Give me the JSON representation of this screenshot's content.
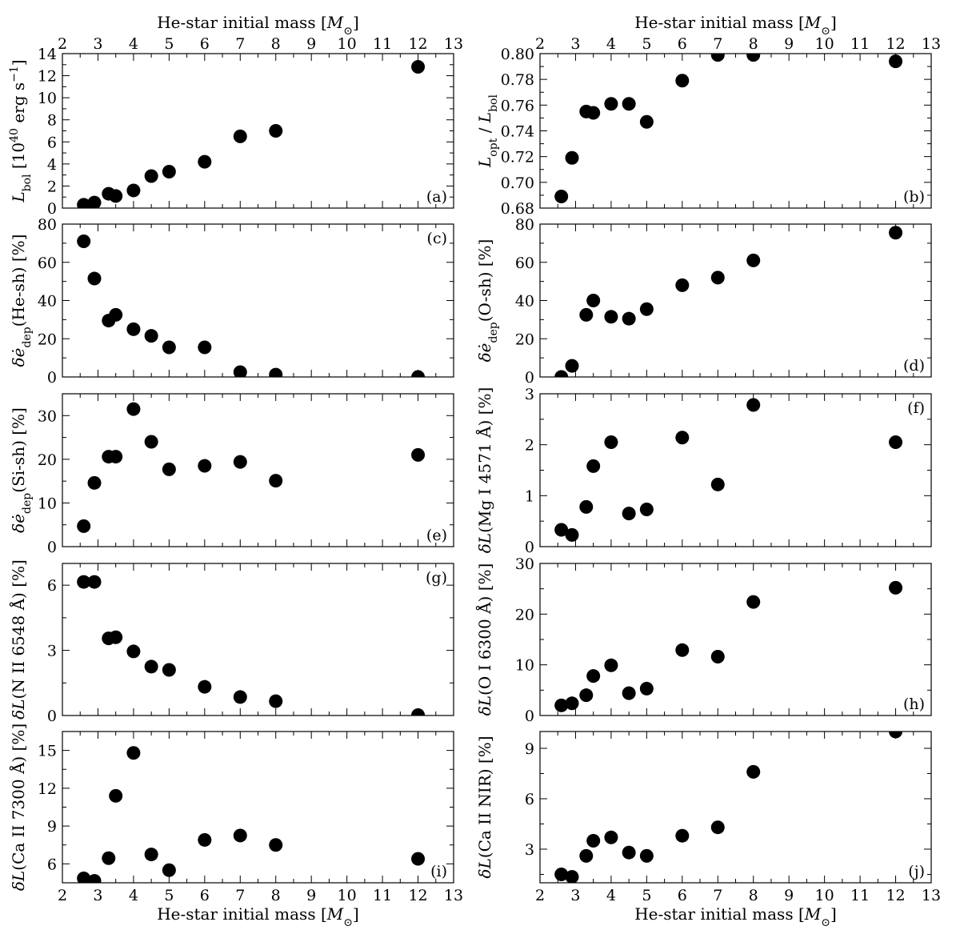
{
  "chart_data": [
    {
      "id": "a",
      "type": "scatter",
      "panel_label": "(a)",
      "ylabel_parts": [
        {
          "t": "L",
          "italic": true
        },
        {
          "t": "bol",
          "sub": true
        },
        {
          "t": " [10"
        },
        {
          "t": "40",
          "sup": true
        },
        {
          "t": " erg s"
        },
        {
          "t": "−1",
          "sup": true
        },
        {
          "t": "]"
        }
      ],
      "xlabel_top_parts": [
        {
          "t": "He-star initial mass ["
        },
        {
          "t": "M",
          "italic": true
        },
        {
          "t": "⊙",
          "sub": true
        },
        {
          "t": "]"
        }
      ],
      "xlim": [
        2,
        13
      ],
      "ylim": [
        0,
        14
      ],
      "xticks": [
        2,
        3,
        4,
        5,
        6,
        7,
        8,
        9,
        10,
        11,
        12,
        13
      ],
      "xticklabels": [
        "2",
        "3",
        "4",
        "5",
        "6",
        "7",
        "8",
        "9",
        "10",
        "11",
        "12",
        "13"
      ],
      "yticks": [
        0,
        2,
        4,
        6,
        8,
        10,
        12,
        14
      ],
      "yticklabels": [
        "0",
        "2",
        "4",
        "6",
        "8",
        "10",
        "12",
        "14"
      ],
      "x": [
        2.6,
        2.9,
        3.3,
        3.5,
        4.0,
        4.5,
        5.0,
        6.0,
        7.0,
        8.0,
        12.0
      ],
      "y": [
        0.3,
        0.5,
        1.3,
        1.1,
        1.6,
        2.9,
        3.3,
        4.2,
        6.5,
        7.0,
        12.8
      ]
    },
    {
      "id": "b",
      "type": "scatter",
      "panel_label": "(b)",
      "ylabel_parts": [
        {
          "t": "L",
          "italic": true
        },
        {
          "t": "opt",
          "sub": true
        },
        {
          "t": " / "
        },
        {
          "t": "L",
          "italic": true
        },
        {
          "t": "bol",
          "sub": true
        }
      ],
      "xlabel_top_parts": [
        {
          "t": "He-star initial mass ["
        },
        {
          "t": "M",
          "italic": true
        },
        {
          "t": "⊙",
          "sub": true
        },
        {
          "t": "]"
        }
      ],
      "xlim": [
        2,
        13
      ],
      "ylim": [
        0.68,
        0.8
      ],
      "xticks": [
        2,
        3,
        4,
        5,
        6,
        7,
        8,
        9,
        10,
        11,
        12,
        13
      ],
      "xticklabels": [
        "2",
        "3",
        "4",
        "5",
        "6",
        "7",
        "8",
        "9",
        "10",
        "11",
        "12",
        "13"
      ],
      "yticks": [
        0.68,
        0.7,
        0.72,
        0.74,
        0.76,
        0.78,
        0.8
      ],
      "yticklabels": [
        "0.68",
        "0.70",
        "0.72",
        "0.74",
        "0.76",
        "0.78",
        "0.80"
      ],
      "x": [
        2.6,
        2.9,
        3.3,
        3.5,
        4.0,
        4.5,
        5.0,
        6.0,
        7.0,
        8.0,
        12.0
      ],
      "y": [
        0.689,
        0.719,
        0.755,
        0.754,
        0.761,
        0.761,
        0.747,
        0.779,
        0.799,
        0.799,
        0.794
      ]
    },
    {
      "id": "c",
      "type": "scatter",
      "panel_label": "(c)",
      "ylabel_parts": [
        {
          "t": "δė",
          "italic": true
        },
        {
          "t": "dep",
          "sub": true
        },
        {
          "t": "(He-sh) [%]"
        }
      ],
      "xlim": [
        2,
        13
      ],
      "ylim": [
        0,
        80
      ],
      "xticks": [
        2,
        3,
        4,
        5,
        6,
        7,
        8,
        9,
        10,
        11,
        12,
        13
      ],
      "yticks": [
        0,
        20,
        40,
        60,
        80
      ],
      "yticklabels": [
        "0",
        "20",
        "40",
        "60",
        "80"
      ],
      "x": [
        2.6,
        2.9,
        3.3,
        3.5,
        4.0,
        4.5,
        5.0,
        6.0,
        7.0,
        8.0,
        12.0
      ],
      "y": [
        71,
        51.5,
        29.5,
        32.5,
        25,
        21.5,
        15.5,
        15.5,
        2.5,
        1.2,
        0
      ]
    },
    {
      "id": "d",
      "type": "scatter",
      "panel_label": "(d)",
      "ylabel_parts": [
        {
          "t": "δė",
          "italic": true
        },
        {
          "t": "dep",
          "sub": true
        },
        {
          "t": "(O-sh) [%]"
        }
      ],
      "xlim": [
        2,
        13
      ],
      "ylim": [
        0,
        80
      ],
      "xticks": [
        2,
        3,
        4,
        5,
        6,
        7,
        8,
        9,
        10,
        11,
        12,
        13
      ],
      "yticks": [
        0,
        20,
        40,
        60,
        80
      ],
      "yticklabels": [
        "0",
        "20",
        "40",
        "60",
        "80"
      ],
      "x": [
        2.6,
        2.9,
        3.3,
        3.5,
        4.0,
        4.5,
        5.0,
        6.0,
        7.0,
        8.0,
        12.0
      ],
      "y": [
        0,
        5.8,
        32.5,
        40,
        31.5,
        30.5,
        35.5,
        48,
        52,
        61,
        75.5
      ]
    },
    {
      "id": "e",
      "type": "scatter",
      "panel_label": "(e)",
      "ylabel_parts": [
        {
          "t": "δė",
          "italic": true
        },
        {
          "t": "dep",
          "sub": true
        },
        {
          "t": "(Si-sh) [%]"
        }
      ],
      "xlim": [
        2,
        13
      ],
      "ylim": [
        0,
        35
      ],
      "xticks": [
        2,
        3,
        4,
        5,
        6,
        7,
        8,
        9,
        10,
        11,
        12,
        13
      ],
      "yticks": [
        0,
        10,
        20,
        30
      ],
      "yticklabels": [
        "0",
        "10",
        "20",
        "30"
      ],
      "x": [
        2.6,
        2.9,
        3.3,
        3.5,
        4.0,
        4.5,
        5.0,
        6.0,
        7.0,
        8.0,
        12.0
      ],
      "y": [
        4.7,
        14.6,
        20.6,
        20.6,
        31.5,
        24,
        17.7,
        18.5,
        19.4,
        15.1,
        21
      ]
    },
    {
      "id": "f",
      "type": "scatter",
      "panel_label": "(f)",
      "ylabel_parts": [
        {
          "t": "δL",
          "italic": true
        },
        {
          "t": "(Mg I 4571 Å) [%]"
        }
      ],
      "xlim": [
        2,
        13
      ],
      "ylim": [
        0,
        3
      ],
      "xticks": [
        2,
        3,
        4,
        5,
        6,
        7,
        8,
        9,
        10,
        11,
        12,
        13
      ],
      "yticks": [
        0,
        1,
        2,
        3
      ],
      "yticklabels": [
        "0",
        "1",
        "2",
        "3"
      ],
      "x": [
        2.6,
        2.9,
        3.3,
        3.5,
        4.0,
        4.5,
        5.0,
        6.0,
        7.0,
        8.0,
        12.0
      ],
      "y": [
        0.33,
        0.23,
        0.78,
        1.58,
        2.05,
        0.65,
        0.73,
        2.14,
        1.22,
        2.78,
        2.05
      ]
    },
    {
      "id": "g",
      "type": "scatter",
      "panel_label": "(g)",
      "ylabel_parts": [
        {
          "t": "δL",
          "italic": true
        },
        {
          "t": "(N II 6548 Å) [%]"
        }
      ],
      "xlim": [
        2,
        13
      ],
      "ylim": [
        0,
        7
      ],
      "xticks": [
        2,
        3,
        4,
        5,
        6,
        7,
        8,
        9,
        10,
        11,
        12,
        13
      ],
      "yticks": [
        0,
        3,
        6
      ],
      "yticklabels": [
        "0",
        "3",
        "6"
      ],
      "x": [
        2.6,
        2.9,
        3.3,
        3.5,
        4.0,
        4.5,
        5.0,
        6.0,
        7.0,
        8.0,
        12.0
      ],
      "y": [
        6.15,
        6.15,
        3.55,
        3.6,
        2.95,
        2.25,
        2.1,
        1.32,
        0.85,
        0.66,
        0.02
      ]
    },
    {
      "id": "h",
      "type": "scatter",
      "panel_label": "(h)",
      "ylabel_parts": [
        {
          "t": "δL",
          "italic": true
        },
        {
          "t": "(O I 6300 Å) [%]"
        }
      ],
      "xlim": [
        2,
        13
      ],
      "ylim": [
        0,
        30
      ],
      "xticks": [
        2,
        3,
        4,
        5,
        6,
        7,
        8,
        9,
        10,
        11,
        12,
        13
      ],
      "yticks": [
        0,
        10,
        20,
        30
      ],
      "yticklabels": [
        "0",
        "10",
        "20",
        "30"
      ],
      "x": [
        2.6,
        2.9,
        3.3,
        3.5,
        4.0,
        4.5,
        5.0,
        6.0,
        7.0,
        8.0,
        12.0
      ],
      "y": [
        2.0,
        2.4,
        4.0,
        7.8,
        9.9,
        4.4,
        5.3,
        12.9,
        11.6,
        22.4,
        25.2
      ]
    },
    {
      "id": "i",
      "type": "scatter",
      "panel_label": "(i)",
      "ylabel_parts": [
        {
          "t": "δL",
          "italic": true
        },
        {
          "t": "(Ca II 7300 Å) [%]"
        }
      ],
      "xlabel_parts": [
        {
          "t": "He-star initial mass ["
        },
        {
          "t": "M",
          "italic": true
        },
        {
          "t": "⊙",
          "sub": true
        },
        {
          "t": "]"
        }
      ],
      "xlim": [
        2,
        13
      ],
      "ylim": [
        4.5,
        16.5
      ],
      "xticks": [
        2,
        3,
        4,
        5,
        6,
        7,
        8,
        9,
        10,
        11,
        12,
        13
      ],
      "xticklabels": [
        "2",
        "3",
        "4",
        "5",
        "6",
        "7",
        "8",
        "9",
        "10",
        "11",
        "12",
        "13"
      ],
      "yticks": [
        6,
        9,
        12,
        15
      ],
      "yticklabels": [
        "6",
        "9",
        "12",
        "15"
      ],
      "x": [
        2.6,
        2.9,
        3.3,
        3.5,
        4.0,
        4.5,
        5.0,
        6.0,
        7.0,
        8.0,
        12.0
      ],
      "y": [
        4.85,
        4.65,
        6.45,
        11.4,
        14.8,
        6.75,
        5.5,
        7.9,
        8.25,
        7.5,
        6.4
      ]
    },
    {
      "id": "j",
      "type": "scatter",
      "panel_label": "(j)",
      "ylabel_parts": [
        {
          "t": "δL",
          "italic": true
        },
        {
          "t": "(Ca II NIR) [%]"
        }
      ],
      "xlabel_parts": [
        {
          "t": "He-star initial mass ["
        },
        {
          "t": "M",
          "italic": true
        },
        {
          "t": "⊙",
          "sub": true
        },
        {
          "t": "]"
        }
      ],
      "xlim": [
        2,
        13
      ],
      "ylim": [
        1.0,
        10.0
      ],
      "xticks": [
        2,
        3,
        4,
        5,
        6,
        7,
        8,
        9,
        10,
        11,
        12,
        13
      ],
      "xticklabels": [
        "2",
        "3",
        "4",
        "5",
        "6",
        "7",
        "8",
        "9",
        "10",
        "11",
        "12",
        "13"
      ],
      "yticks": [
        3,
        6,
        9
      ],
      "yticklabels": [
        "3",
        "6",
        "9"
      ],
      "x": [
        2.6,
        2.9,
        3.3,
        3.5,
        4.0,
        4.5,
        5.0,
        6.0,
        7.0,
        8.0,
        12.0
      ],
      "y": [
        1.5,
        1.35,
        2.6,
        3.5,
        3.7,
        2.8,
        2.6,
        3.8,
        4.3,
        7.6,
        10.0
      ]
    }
  ]
}
